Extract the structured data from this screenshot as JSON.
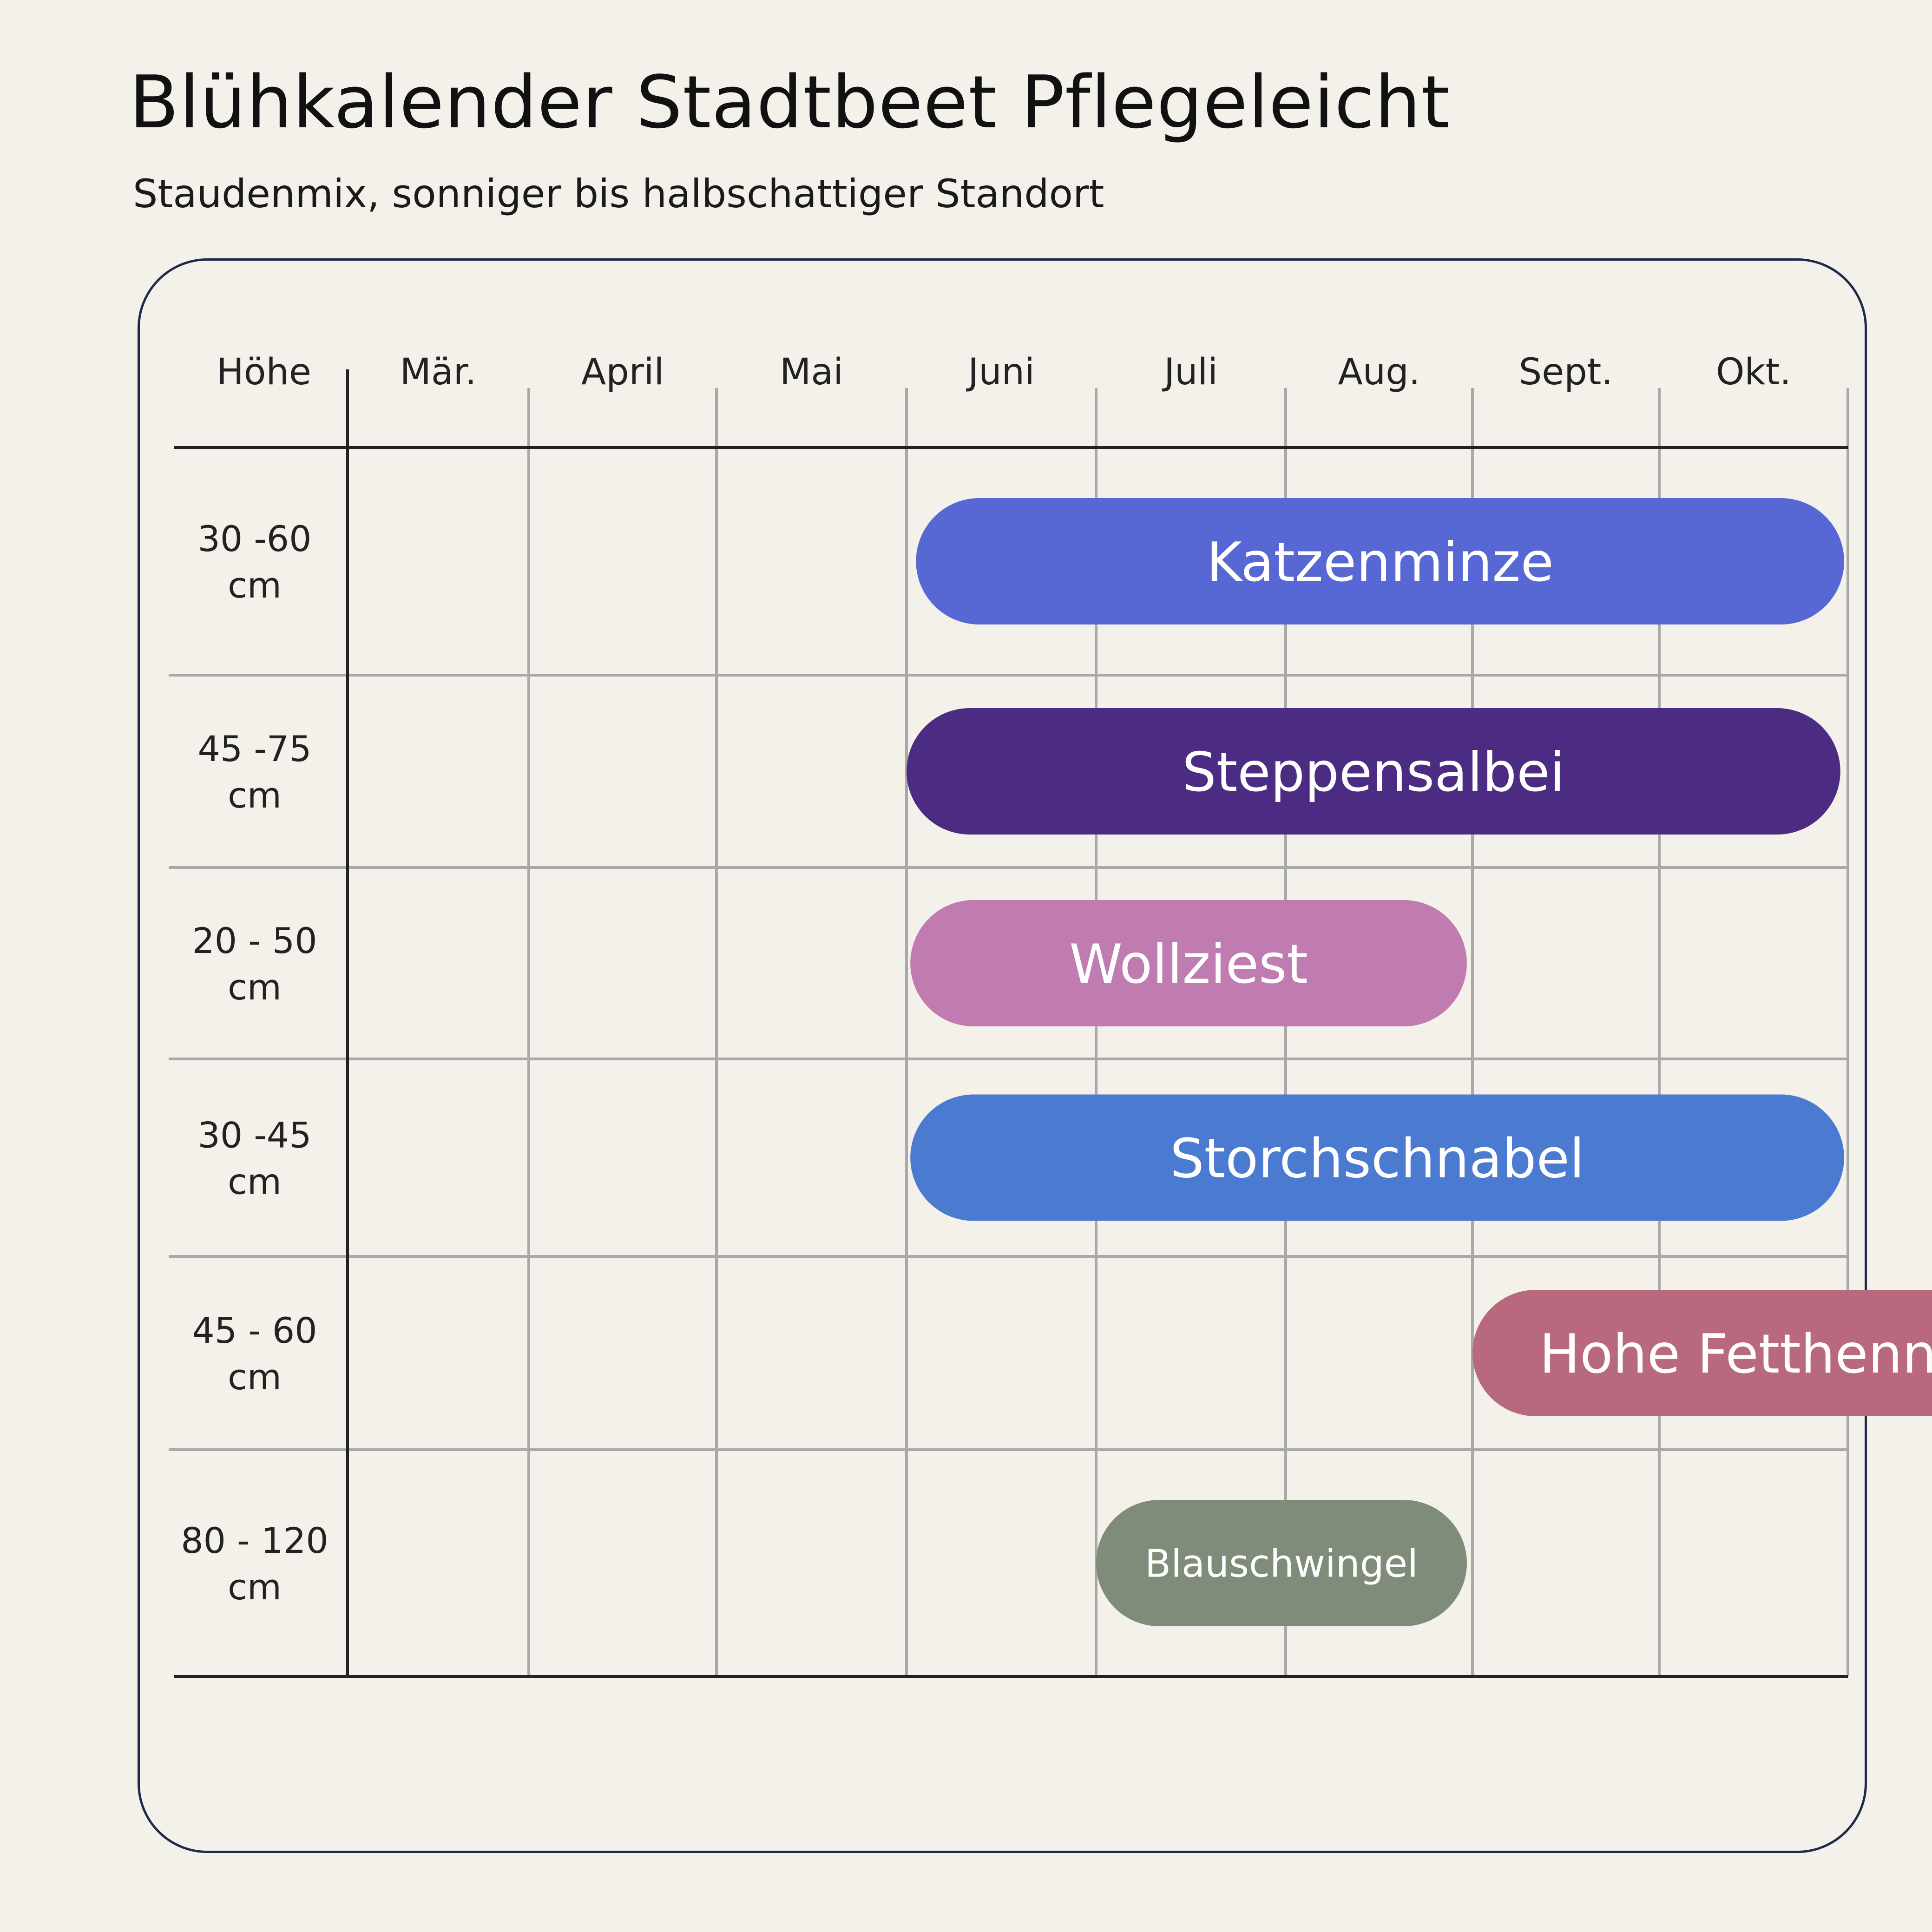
{
  "title": "Blühkalender Stadtbeet Pflegeleicht",
  "subtitle": "Staudenmix, sonniger bis halbschattiger Standort",
  "chart_data": {
    "type": "gantt",
    "row_header": "Höhe",
    "months": [
      "Mär.",
      "April",
      "Mai",
      "Juni",
      "Juli",
      "Aug.",
      "Sept.",
      "Okt."
    ],
    "grid": true,
    "colors": {
      "background": "#f4f1ea",
      "frame": "#1f2a4a",
      "grid_line": "#a9a9a9",
      "axis_line": "#222222"
    },
    "rows": [
      {
        "height_label": [
          "30 -60",
          "cm"
        ],
        "plant": "Katzenminze",
        "start": 3.05,
        "end": 7.98,
        "color": "#5768d4"
      },
      {
        "height_label": [
          "45 -75",
          "cm"
        ],
        "plant": "Steppensalbei",
        "start": 3.0,
        "end": 7.96,
        "color": "#4b2c82"
      },
      {
        "height_label": [
          "20 - 50",
          "cm"
        ],
        "plant": "Wollziest",
        "start": 3.02,
        "end": 5.97,
        "color": "#c07cb0"
      },
      {
        "height_label": [
          "30 -45",
          "cm"
        ],
        "plant": "Storchschnabel",
        "start": 3.02,
        "end": 7.98,
        "color": "#4a7bd0"
      },
      {
        "height_label": [
          "45 - 60",
          "cm"
        ],
        "plant": "Hohe Fetthenne",
        "start": 6.0,
        "end": 9.0,
        "color": "#b8697d"
      },
      {
        "height_label": [
          "80 - 120",
          "cm"
        ],
        "plant": "Blauschwingel",
        "start": 4.0,
        "end": 5.97,
        "color": "#7f8c79",
        "small_label": true
      }
    ]
  }
}
